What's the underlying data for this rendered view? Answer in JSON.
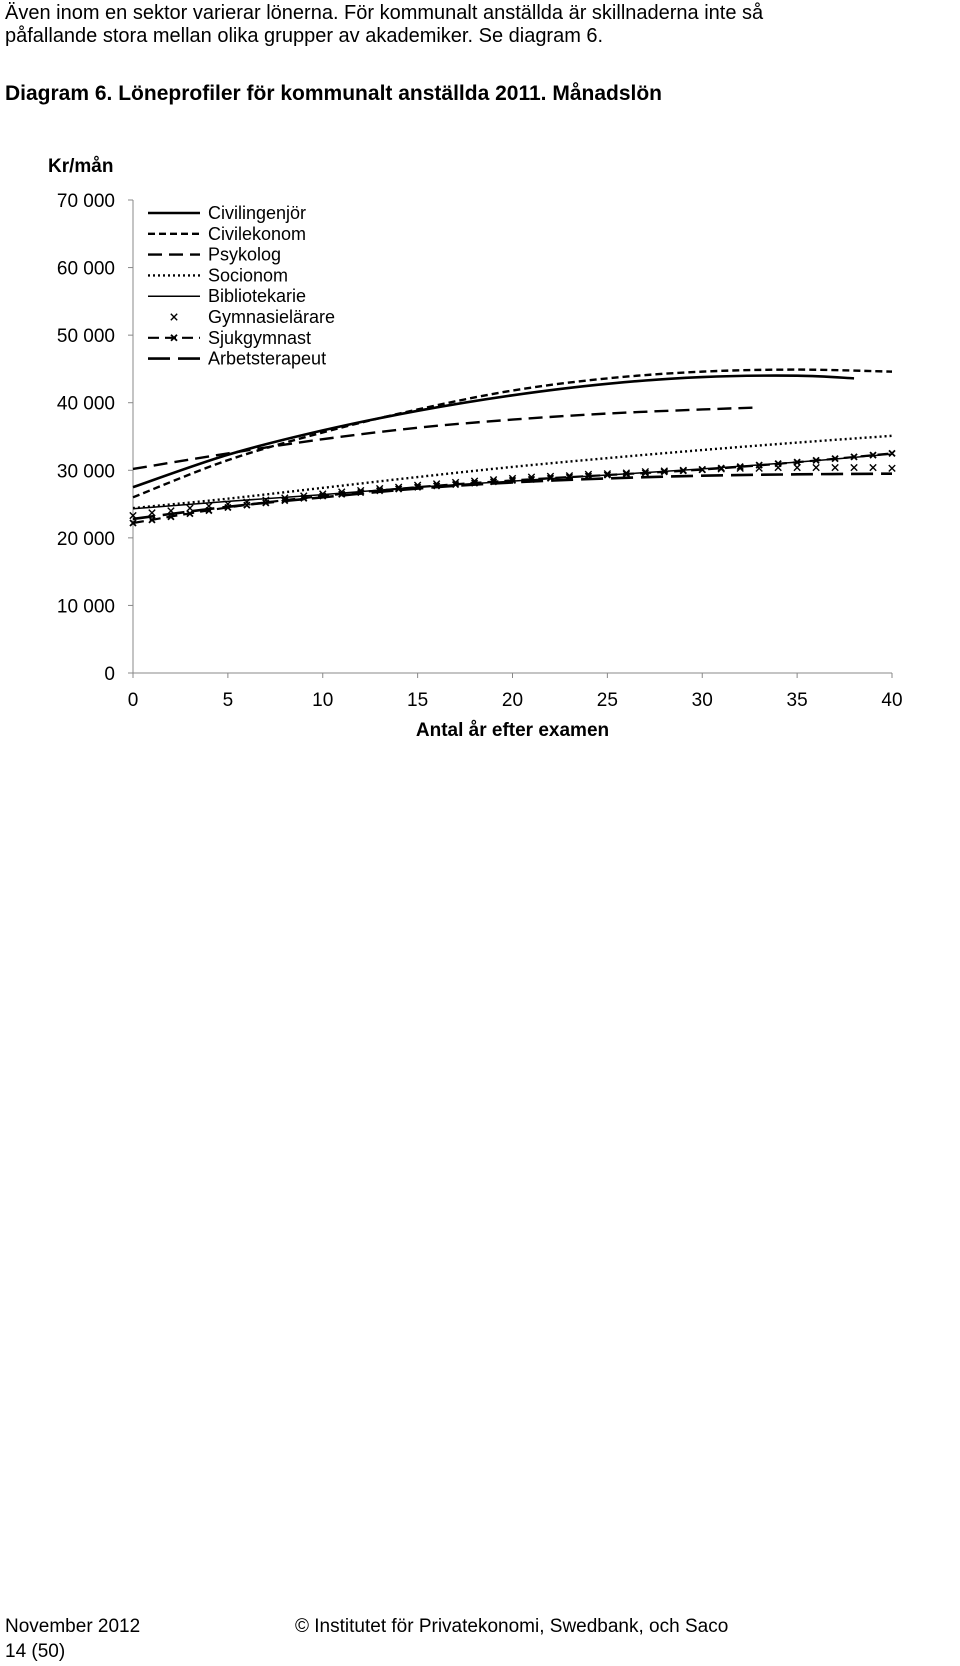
{
  "intro": {
    "line1": "Även inom en sektor varierar lönerna. För kommunalt anställda är skillnaderna inte så",
    "line2": "påfallande stora mellan olika grupper av akademiker. Se diagram 6."
  },
  "diagram_title": "Diagram 6. Löneprofiler för kommunalt anställda 2011. Månadslön",
  "footer": {
    "date": "November 2012",
    "page": "14 (50)",
    "copyright": "© Institutet för Privatekonomi, Swedbank, och Saco"
  },
  "chart_data": {
    "type": "line",
    "title": "",
    "ylabel": "Kr/mån",
    "xlabel": "Antal år efter examen",
    "xlim": [
      0,
      40
    ],
    "ylim": [
      0,
      70000
    ],
    "x_ticks": [
      0,
      5,
      10,
      15,
      20,
      25,
      30,
      35,
      40
    ],
    "x_tick_labels": [
      "0",
      "5",
      "10",
      "15",
      "20",
      "25",
      "30",
      "35",
      "40"
    ],
    "y_ticks": [
      0,
      10000,
      20000,
      30000,
      40000,
      50000,
      60000,
      70000
    ],
    "y_tick_labels": [
      "0",
      "10 000",
      "20 000",
      "30 000",
      "40 000",
      "50 000",
      "60 000",
      "70 000"
    ],
    "grid": false,
    "legend_position": "top-left",
    "series": [
      {
        "name": "Civilingenjör",
        "style": "solid-thick",
        "x": [
          0,
          5,
          10,
          15,
          20,
          25,
          30,
          35,
          38
        ],
        "y": [
          27500,
          32300,
          35900,
          38800,
          41100,
          42800,
          43800,
          44000,
          43600
        ]
      },
      {
        "name": "Civilekonom",
        "style": "short-dash",
        "x": [
          0,
          5,
          10,
          15,
          20,
          25,
          30,
          35,
          40
        ],
        "y": [
          26000,
          31500,
          35600,
          39000,
          41800,
          43600,
          44600,
          44900,
          44600
        ]
      },
      {
        "name": "Psykolog",
        "style": "medium-dash",
        "x": [
          0,
          5,
          10,
          15,
          20,
          25,
          30,
          33
        ],
        "y": [
          30200,
          32500,
          34600,
          36300,
          37500,
          38400,
          39000,
          39300
        ]
      },
      {
        "name": "Socionom",
        "style": "dotted",
        "x": [
          0,
          5,
          10,
          15,
          20,
          25,
          30,
          35,
          40
        ],
        "y": [
          24400,
          25800,
          27400,
          29000,
          30500,
          31800,
          33000,
          34100,
          35100
        ]
      },
      {
        "name": "Bibliotekarie",
        "style": "solid-thin",
        "x": [
          0,
          5,
          10,
          15,
          20,
          25,
          30,
          35,
          40
        ],
        "y": [
          24300,
          25400,
          26400,
          27500,
          28400,
          29300,
          30200,
          31200,
          32400
        ]
      },
      {
        "name": "Gymnasielärare",
        "style": "markers",
        "x": [
          0,
          1,
          2,
          3,
          4,
          5,
          6,
          7,
          8,
          9,
          10,
          11,
          12,
          13,
          14,
          15,
          16,
          17,
          18,
          19,
          20,
          21,
          22,
          23,
          24,
          25,
          26,
          27,
          28,
          29,
          30,
          31,
          32,
          33,
          34,
          35,
          36,
          37,
          38,
          39,
          40
        ],
        "y": [
          23300,
          23700,
          24000,
          24400,
          24700,
          25000,
          25300,
          25600,
          25900,
          26200,
          26500,
          26800,
          27000,
          27300,
          27500,
          27800,
          28000,
          28200,
          28400,
          28600,
          28800,
          29000,
          29100,
          29200,
          29400,
          29500,
          29600,
          29800,
          29900,
          30000,
          30100,
          30200,
          30300,
          30300,
          30400,
          30400,
          30400,
          30400,
          30400,
          30400,
          30300
        ]
      },
      {
        "name": "Sjukgymnast",
        "style": "dash-marker",
        "x": [
          0,
          5,
          10,
          15,
          20,
          25,
          30,
          35,
          40
        ],
        "y": [
          22200,
          24500,
          26200,
          27500,
          28500,
          29300,
          30100,
          31200,
          32500
        ]
      },
      {
        "name": "Arbetsterapeut",
        "style": "long-dash",
        "x": [
          0,
          5,
          10,
          15,
          20,
          25,
          30,
          35,
          40
        ],
        "y": [
          22800,
          24600,
          26000,
          27300,
          28200,
          28800,
          29200,
          29400,
          29500
        ]
      }
    ]
  }
}
